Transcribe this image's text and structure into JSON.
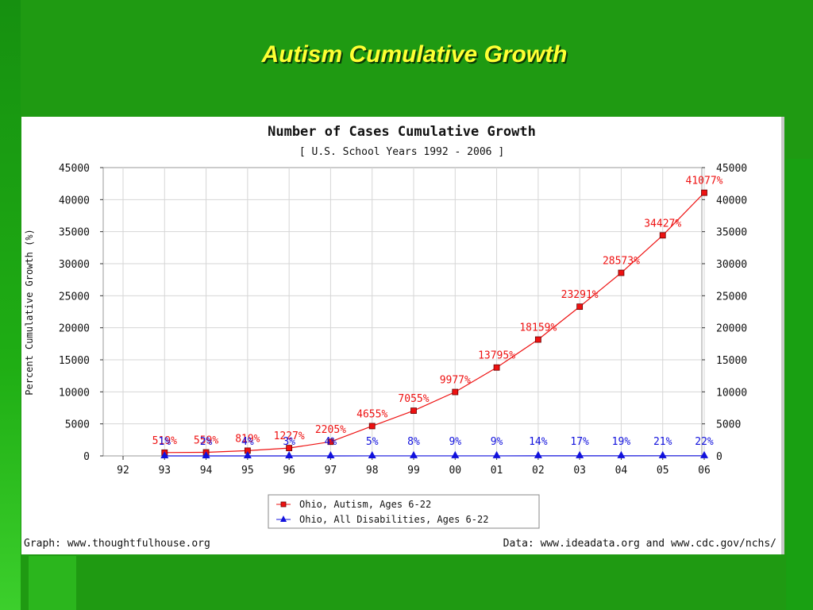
{
  "slide": {
    "title": "Autism Cumulative Growth"
  },
  "colors": {
    "background": "#1f9a12",
    "title": "#ffff33",
    "autism_series": "#ee1111",
    "disabilities_series": "#1111dd"
  },
  "chart_data": {
    "type": "line",
    "title": "Number of Cases Cumulative Growth",
    "subtitle": "[ U.S. School Years 1992 - 2006 ]",
    "ylabel": "Percent Cumulative Growth (%)",
    "xlabel": "",
    "categories": [
      "92",
      "93",
      "94",
      "95",
      "96",
      "97",
      "98",
      "99",
      "00",
      "01",
      "02",
      "03",
      "04",
      "05",
      "06"
    ],
    "y_ticks": [
      "0",
      "5000",
      "10000",
      "15000",
      "20000",
      "25000",
      "30000",
      "35000",
      "40000",
      "45000"
    ],
    "ylim": [
      0,
      45000
    ],
    "grid": true,
    "legend_placement": "bottom-center",
    "series": [
      {
        "name": "Ohio, Autism, Ages 6-22",
        "color": "#ee1111",
        "marker": "square",
        "x": [
          "93",
          "94",
          "95",
          "96",
          "97",
          "98",
          "99",
          "00",
          "01",
          "02",
          "03",
          "04",
          "05",
          "06"
        ],
        "values": [
          519,
          559,
          819,
          1227,
          2205,
          4655,
          7055,
          9977,
          13795,
          18159,
          23291,
          28573,
          34427,
          41077
        ],
        "labels": [
          "519%",
          "559%",
          "819%",
          "1227%",
          "2205%",
          "4655%",
          "7055%",
          "9977%",
          "13795%",
          "18159%",
          "23291%",
          "28573%",
          "34427%",
          "41077%"
        ]
      },
      {
        "name": "Ohio, All Disabilities, Ages 6-22",
        "color": "#1111dd",
        "marker": "triangle",
        "x": [
          "93",
          "94",
          "95",
          "96",
          "97",
          "98",
          "99",
          "00",
          "01",
          "02",
          "03",
          "04",
          "05",
          "06"
        ],
        "values": [
          1,
          2,
          4,
          3,
          4,
          5,
          8,
          9,
          9,
          14,
          17,
          19,
          21,
          22
        ],
        "labels": [
          "1%",
          "2%",
          "4%",
          "3%",
          "4%",
          "5%",
          "8%",
          "9%",
          "9%",
          "14%",
          "17%",
          "19%",
          "21%",
          "22%"
        ]
      }
    ],
    "footer_left": "Graph: www.thoughtfulhouse.org",
    "footer_right": "Data: www.ideadata.org and www.cdc.gov/nchs/"
  }
}
